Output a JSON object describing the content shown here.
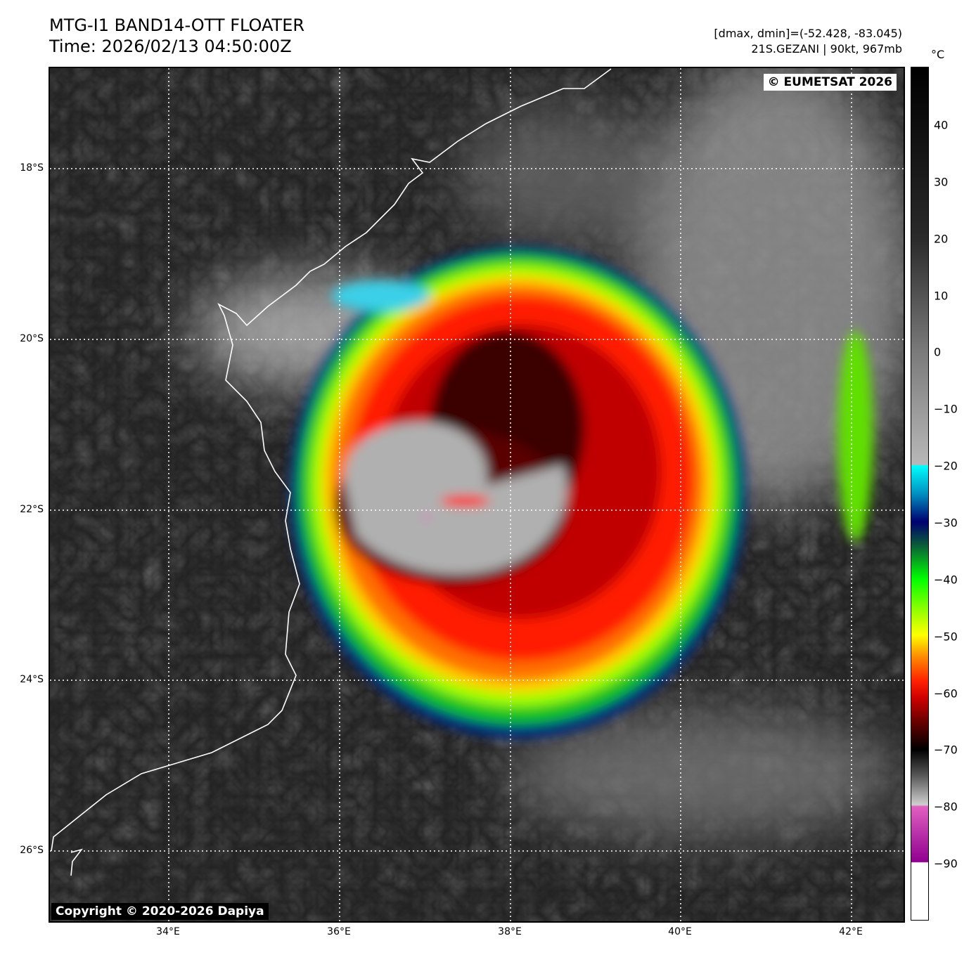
{
  "header": {
    "title_line1": "MTG-I1 BAND14-OTT FLOATER",
    "title_line2": "Time: 2026/02/13 04:50:00Z",
    "stats": "[dmax, dmin]=(-52.428, -83.045)",
    "storm": "21S.GEZANI | 90kt, 967mb"
  },
  "map": {
    "credit_top": "© EUMETSAT 2026",
    "credit_bottom": "Copyright © 2020-2026 Dapiya",
    "lat_labels": [
      "18°S",
      "20°S",
      "22°S",
      "24°S",
      "26°S"
    ],
    "lon_labels": [
      "34°E",
      "36°E",
      "38°E",
      "40°E",
      "42°E"
    ],
    "extent": {
      "lon": [
        32.6,
        42.6
      ],
      "lat": [
        -16.8,
        -26.8
      ]
    }
  },
  "colorbar": {
    "unit": "°C",
    "range": [
      50,
      -100
    ],
    "ticks": [
      "40",
      "30",
      "20",
      "10",
      "0",
      "−10",
      "−20",
      "−30",
      "−40",
      "−50",
      "−60",
      "−70",
      "−80",
      "−90"
    ]
  }
}
